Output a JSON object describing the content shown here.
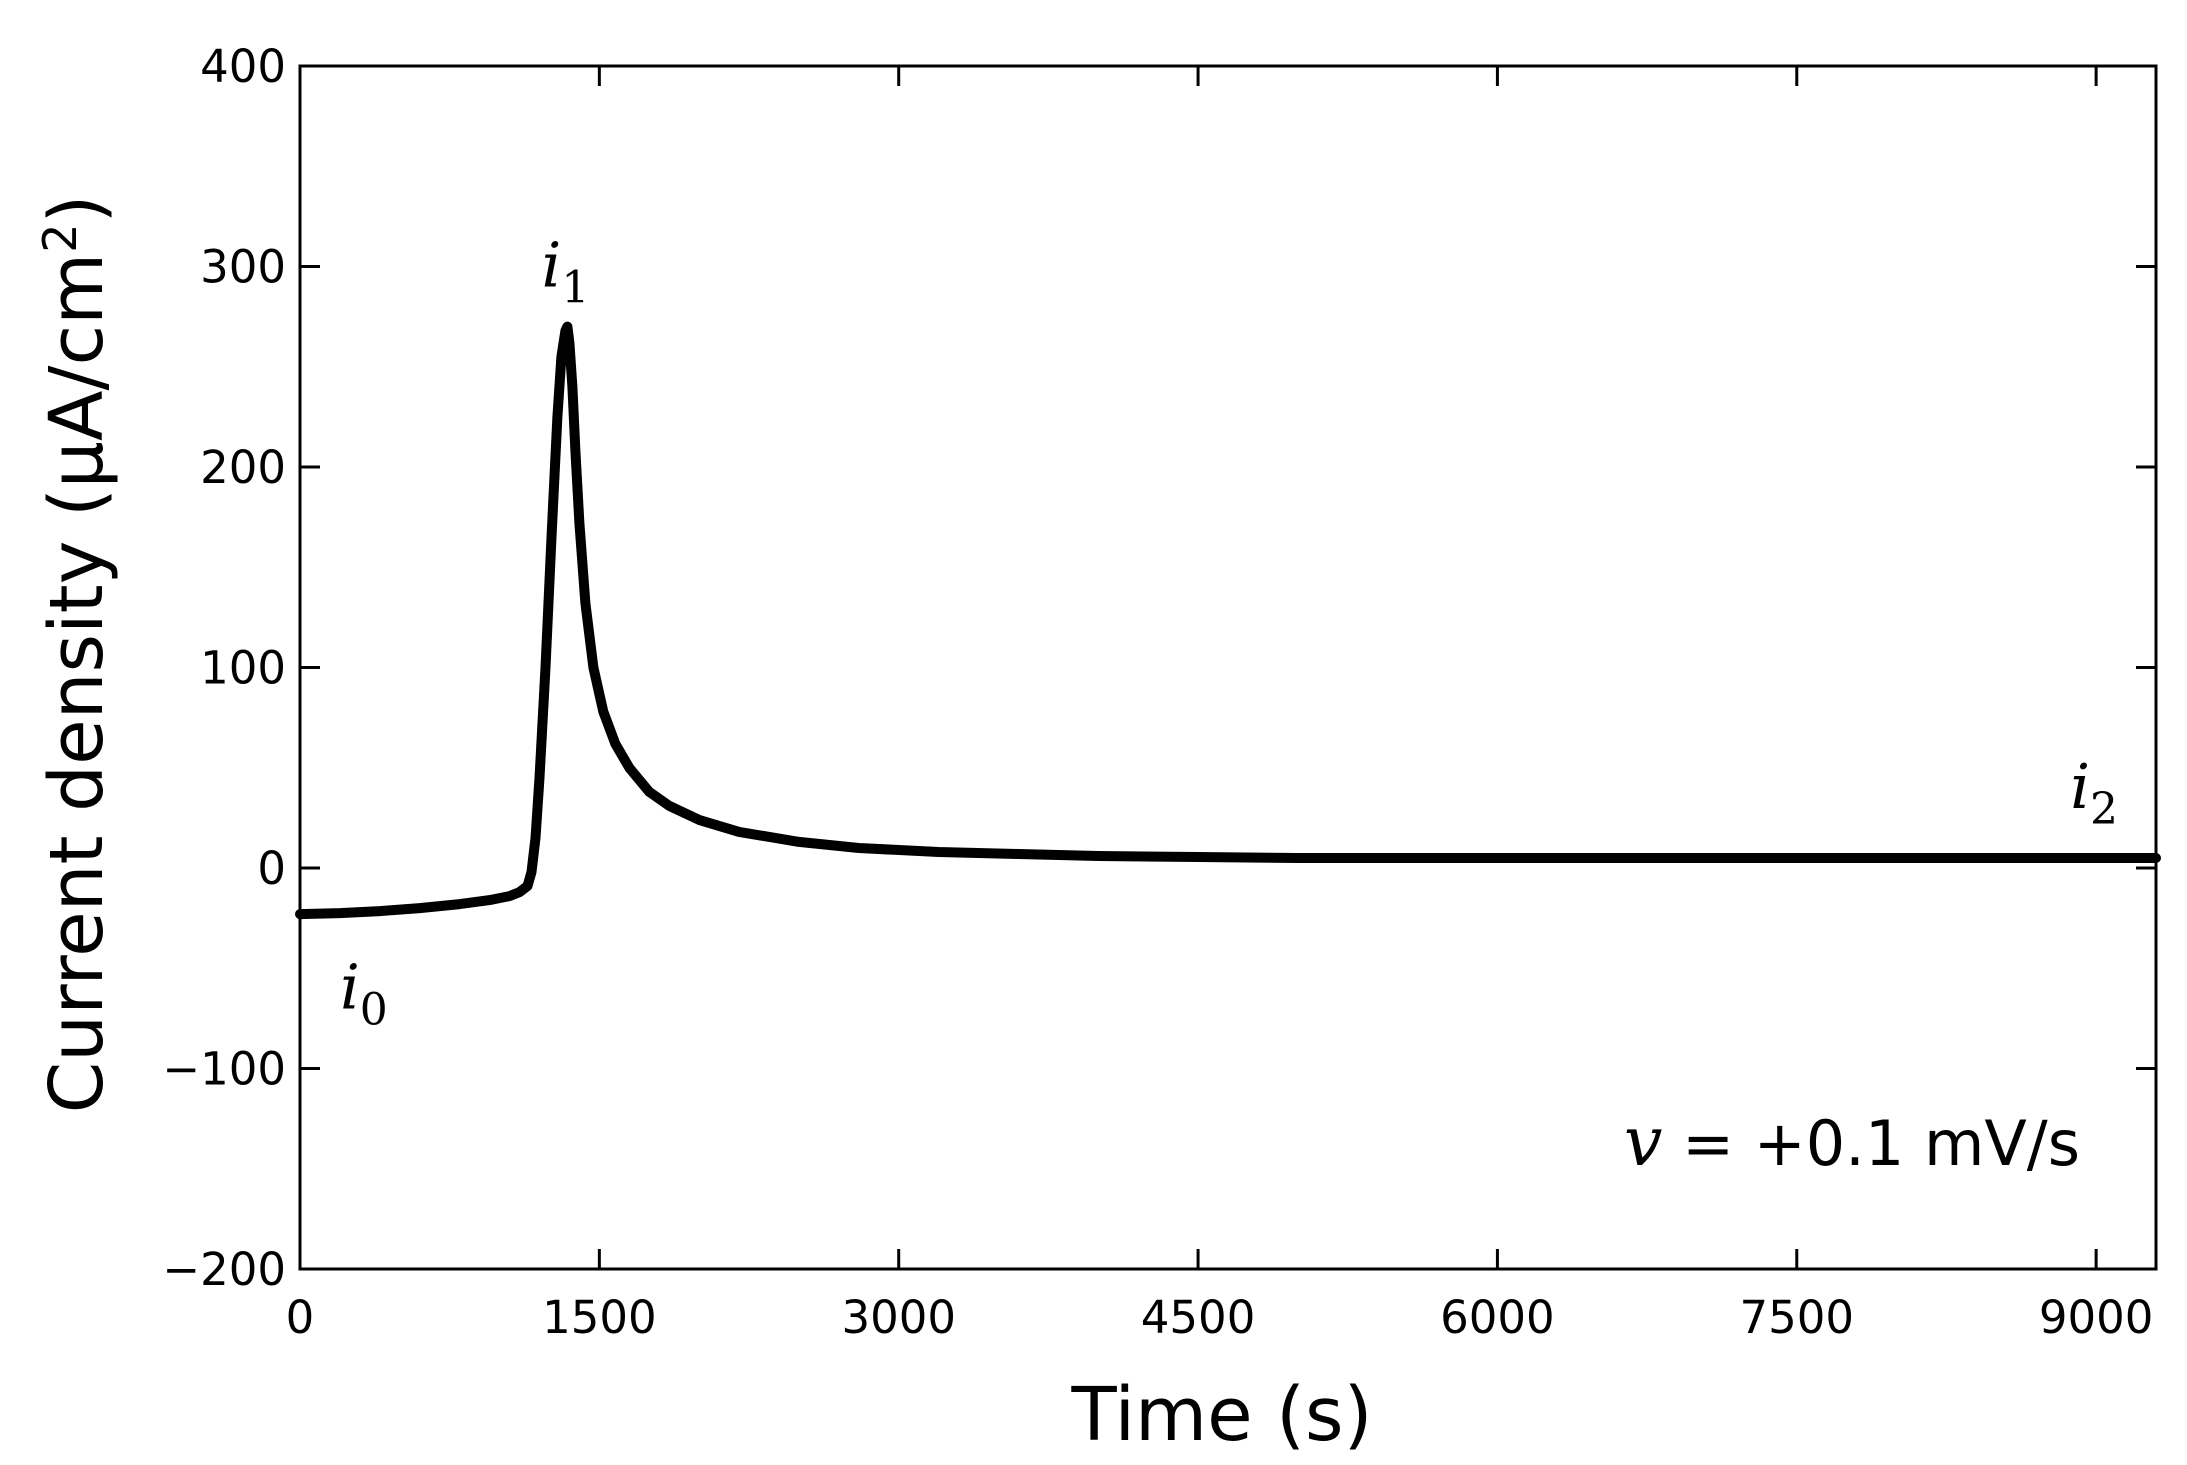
{
  "chart_data": {
    "type": "line",
    "xlabel": "Time (s)",
    "ylabel": "Current density (μA/cm",
    "ylabel_sup": "2",
    "ylabel_close": ")",
    "xlim": [
      0,
      9300
    ],
    "ylim": [
      -200,
      400
    ],
    "xticks": [
      0,
      1500,
      3000,
      4500,
      6000,
      7500,
      9000
    ],
    "xtick_labels": [
      "0",
      "1500",
      "3000",
      "4500",
      "6000",
      "7500",
      "9000"
    ],
    "yticks": [
      -200,
      -100,
      0,
      100,
      200,
      300,
      400
    ],
    "ytick_labels": [
      "−200",
      "−100",
      "0",
      "100",
      "200",
      "300",
      "400"
    ],
    "grid": false,
    "tick_direction": "in",
    "mirror_ticks": true,
    "line_color": "#000000",
    "series": [
      {
        "x": [
          0,
          200,
          400,
          600,
          800,
          950,
          1050,
          1100,
          1140,
          1160,
          1180,
          1200,
          1230,
          1260,
          1290,
          1310,
          1330,
          1340,
          1350,
          1365,
          1380,
          1400,
          1430,
          1470,
          1520,
          1580,
          1650,
          1750,
          1850,
          2000,
          2200,
          2500,
          2800,
          3200,
          3600,
          4000,
          4500,
          5000,
          6000,
          7000,
          8000,
          9000,
          9300
        ],
        "y": [
          -23,
          -22.5,
          -21.5,
          -20,
          -18,
          -16,
          -14,
          -12,
          -9,
          -2,
          15,
          45,
          100,
          165,
          225,
          255,
          268,
          270,
          262,
          240,
          208,
          172,
          132,
          100,
          78,
          62,
          50,
          38,
          31,
          24,
          18,
          13,
          10,
          8,
          7,
          6,
          5.5,
          5,
          5,
          5,
          5,
          5,
          5
        ]
      }
    ],
    "annotations": [
      {
        "id": "i0",
        "base": "i",
        "sub": "0",
        "x": 320,
        "y": -70
      },
      {
        "id": "i1",
        "base": "i",
        "sub": "1",
        "x": 1330,
        "y": 290
      },
      {
        "id": "i2",
        "base": "i",
        "sub": "2",
        "x": 8990,
        "y": 30
      },
      {
        "id": "rate",
        "var": "v",
        "text": " = +0.1 mV/s"
      }
    ]
  }
}
